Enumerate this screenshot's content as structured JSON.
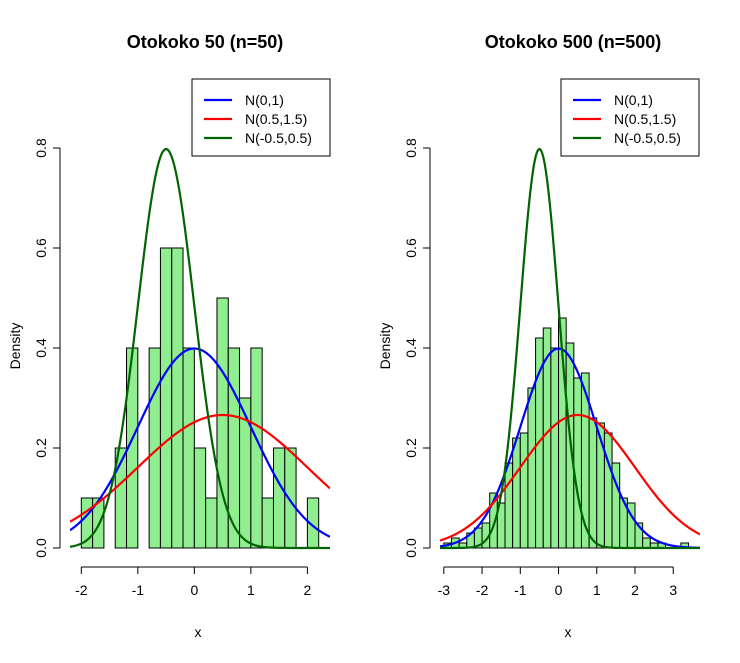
{
  "chart_data": [
    {
      "type": "bar",
      "title": "Otokoko 50 (n=50)",
      "xlabel": "x",
      "ylabel": "Density",
      "xlim": [
        -2.2,
        2.4
      ],
      "ylim": [
        0,
        0.8
      ],
      "x_ticks": [
        -2,
        -1,
        0,
        1,
        2
      ],
      "y_ticks": [
        0.0,
        0.2,
        0.4,
        0.6,
        0.8
      ],
      "x_tick_labels": [
        "-2",
        "-1",
        "0",
        "1",
        "2"
      ],
      "y_tick_labels": [
        "0.0",
        "0.2",
        "0.4",
        "0.6",
        "0.8"
      ],
      "bar_color": "#90ee90",
      "bins": [
        {
          "x0": -2.0,
          "x1": -1.8,
          "density": 0.1
        },
        {
          "x0": -1.8,
          "x1": -1.6,
          "density": 0.1
        },
        {
          "x0": -1.6,
          "x1": -1.4,
          "density": 0.0
        },
        {
          "x0": -1.4,
          "x1": -1.2,
          "density": 0.2
        },
        {
          "x0": -1.2,
          "x1": -1.0,
          "density": 0.4
        },
        {
          "x0": -1.0,
          "x1": -0.8,
          "density": 0.0
        },
        {
          "x0": -0.8,
          "x1": -0.6,
          "density": 0.4
        },
        {
          "x0": -0.6,
          "x1": -0.4,
          "density": 0.6
        },
        {
          "x0": -0.4,
          "x1": -0.2,
          "density": 0.6
        },
        {
          "x0": -0.2,
          "x1": 0.0,
          "density": 0.4
        },
        {
          "x0": 0.0,
          "x1": 0.2,
          "density": 0.2
        },
        {
          "x0": 0.2,
          "x1": 0.4,
          "density": 0.1
        },
        {
          "x0": 0.4,
          "x1": 0.6,
          "density": 0.5
        },
        {
          "x0": 0.6,
          "x1": 0.8,
          "density": 0.4
        },
        {
          "x0": 0.8,
          "x1": 1.0,
          "density": 0.3
        },
        {
          "x0": 1.0,
          "x1": 1.2,
          "density": 0.4
        },
        {
          "x0": 1.2,
          "x1": 1.4,
          "density": 0.1
        },
        {
          "x0": 1.4,
          "x1": 1.6,
          "density": 0.2
        },
        {
          "x0": 1.6,
          "x1": 1.8,
          "density": 0.2
        },
        {
          "x0": 1.8,
          "x1": 2.0,
          "density": 0.0
        },
        {
          "x0": 2.0,
          "x1": 2.2,
          "density": 0.1
        }
      ],
      "series": [
        {
          "name": "N(0,1)",
          "mean": 0,
          "sd": 1,
          "color": "#0000ff"
        },
        {
          "name": "N(0.5,1.5)",
          "mean": 0.5,
          "sd": 1.5,
          "color": "#ff0000"
        },
        {
          "name": "N(-0.5,0.5)",
          "mean": -0.5,
          "sd": 0.5,
          "color": "#006400"
        }
      ],
      "legend_position": "top-right"
    },
    {
      "type": "bar",
      "title": "Otokoko 500 (n=500)",
      "xlabel": "x",
      "ylabel": "Density",
      "xlim": [
        -3.1,
        3.7
      ],
      "ylim": [
        0,
        0.8
      ],
      "x_ticks": [
        -3,
        -2,
        -1,
        0,
        1,
        2,
        3
      ],
      "y_ticks": [
        0.0,
        0.2,
        0.4,
        0.6,
        0.8
      ],
      "x_tick_labels": [
        "-3",
        "-2",
        "-1",
        "0",
        "1",
        "2",
        "3"
      ],
      "y_tick_labels": [
        "0.0",
        "0.2",
        "0.4",
        "0.6",
        "0.8"
      ],
      "bar_color": "#90ee90",
      "bins": [
        {
          "x0": -3.0,
          "x1": -2.8,
          "density": 0.01
        },
        {
          "x0": -2.8,
          "x1": -2.6,
          "density": 0.02
        },
        {
          "x0": -2.6,
          "x1": -2.4,
          "density": 0.01
        },
        {
          "x0": -2.4,
          "x1": -2.2,
          "density": 0.03
        },
        {
          "x0": -2.2,
          "x1": -2.0,
          "density": 0.04
        },
        {
          "x0": -2.0,
          "x1": -1.8,
          "density": 0.05
        },
        {
          "x0": -1.8,
          "x1": -1.6,
          "density": 0.11
        },
        {
          "x0": -1.6,
          "x1": -1.4,
          "density": 0.09
        },
        {
          "x0": -1.4,
          "x1": -1.2,
          "density": 0.17
        },
        {
          "x0": -1.2,
          "x1": -1.0,
          "density": 0.22
        },
        {
          "x0": -1.0,
          "x1": -0.8,
          "density": 0.23
        },
        {
          "x0": -0.8,
          "x1": -0.6,
          "density": 0.32
        },
        {
          "x0": -0.6,
          "x1": -0.4,
          "density": 0.42
        },
        {
          "x0": -0.4,
          "x1": -0.2,
          "density": 0.44
        },
        {
          "x0": -0.2,
          "x1": 0.0,
          "density": 0.4
        },
        {
          "x0": 0.0,
          "x1": 0.2,
          "density": 0.46
        },
        {
          "x0": 0.2,
          "x1": 0.4,
          "density": 0.41
        },
        {
          "x0": 0.4,
          "x1": 0.6,
          "density": 0.34
        },
        {
          "x0": 0.6,
          "x1": 0.8,
          "density": 0.35
        },
        {
          "x0": 0.8,
          "x1": 1.0,
          "density": 0.26
        },
        {
          "x0": 1.0,
          "x1": 1.2,
          "density": 0.25
        },
        {
          "x0": 1.2,
          "x1": 1.4,
          "density": 0.23
        },
        {
          "x0": 1.4,
          "x1": 1.6,
          "density": 0.17
        },
        {
          "x0": 1.6,
          "x1": 1.8,
          "density": 0.1
        },
        {
          "x0": 1.8,
          "x1": 2.0,
          "density": 0.09
        },
        {
          "x0": 2.0,
          "x1": 2.2,
          "density": 0.05
        },
        {
          "x0": 2.2,
          "x1": 2.4,
          "density": 0.02
        },
        {
          "x0": 2.4,
          "x1": 2.6,
          "density": 0.01
        },
        {
          "x0": 2.6,
          "x1": 2.8,
          "density": 0.01
        },
        {
          "x0": 3.2,
          "x1": 3.4,
          "density": 0.01
        }
      ],
      "series": [
        {
          "name": "N(0,1)",
          "mean": 0,
          "sd": 1,
          "color": "#0000ff"
        },
        {
          "name": "N(0.5,1.5)",
          "mean": 0.5,
          "sd": 1.5,
          "color": "#ff0000"
        },
        {
          "name": "N(-0.5,0.5)",
          "mean": -0.5,
          "sd": 0.5,
          "color": "#006400"
        }
      ],
      "legend_position": "top-right"
    }
  ]
}
